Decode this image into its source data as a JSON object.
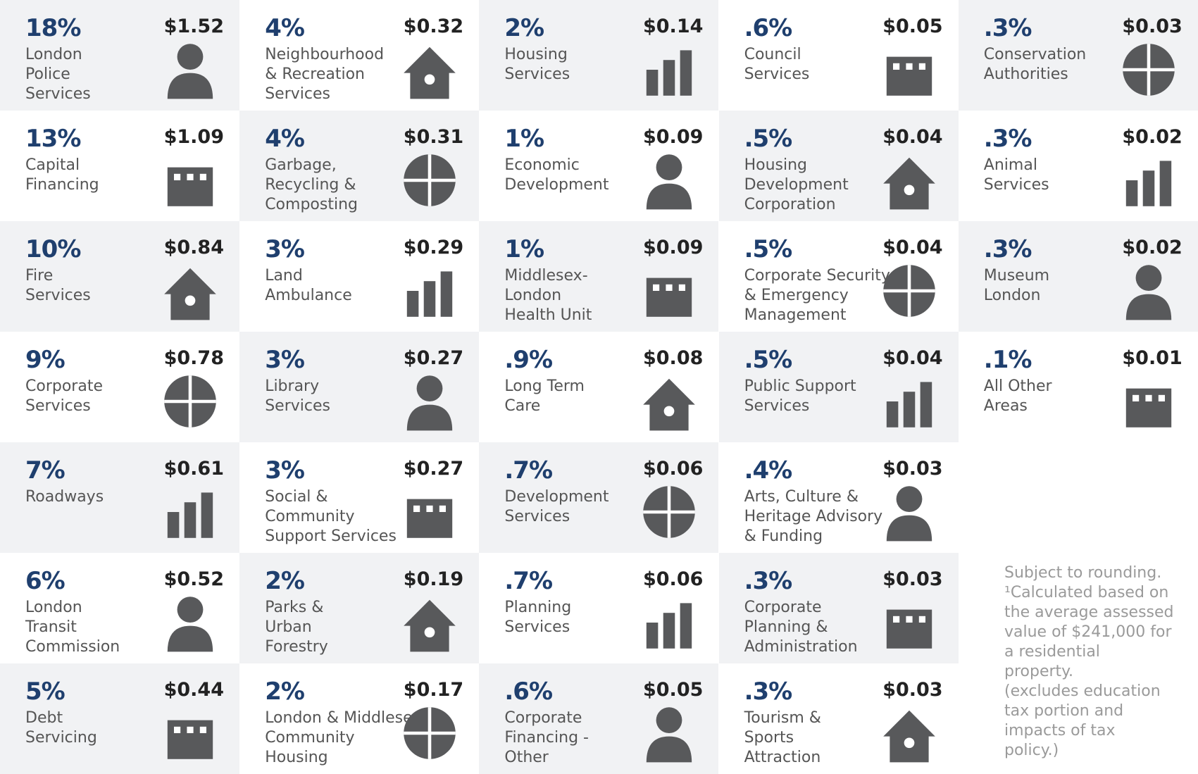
{
  "columns": [
    [
      {
        "percent": "18%",
        "amount": "$1.52",
        "name": [
          "London",
          "Police",
          "Services"
        ]
      },
      {
        "percent": "13%",
        "amount": "$1.09",
        "name": [
          "Capital",
          "Financing"
        ]
      },
      {
        "percent": "10%",
        "amount": "$0.84",
        "name": [
          "Fire",
          "Services"
        ]
      },
      {
        "percent": "9%",
        "amount": "$0.78",
        "name": [
          "Corporate",
          "Services"
        ]
      },
      {
        "percent": "7%",
        "amount": "$0.61",
        "name": [
          "Roadways"
        ]
      },
      {
        "percent": "6%",
        "amount": "$0.52",
        "name": [
          "London",
          "Transit",
          "Commission"
        ]
      },
      {
        "percent": "5%",
        "amount": "$0.44",
        "name": [
          "Debt",
          "Servicing"
        ]
      }
    ],
    [
      {
        "percent": "4%",
        "amount": "$0.32",
        "name": [
          "Neighbourhood",
          "& Recreation",
          "Services"
        ]
      },
      {
        "percent": "4%",
        "amount": "$0.31",
        "name": [
          "Garbage,",
          "Recycling &",
          "Composting"
        ]
      },
      {
        "percent": "3%",
        "amount": "$0.29",
        "name": [
          "Land",
          "Ambulance"
        ]
      },
      {
        "percent": "3%",
        "amount": "$0.27",
        "name": [
          "Library",
          "Services"
        ]
      },
      {
        "percent": "3%",
        "amount": "$0.27",
        "name": [
          "Social &",
          "Community",
          "Support Services"
        ]
      },
      {
        "percent": "2%",
        "amount": "$0.19",
        "name": [
          "Parks &",
          "Urban",
          "Forestry"
        ]
      },
      {
        "percent": "2%",
        "amount": "$0.17",
        "name": [
          "London & Middlesex",
          "Community",
          "Housing"
        ]
      }
    ],
    [
      {
        "percent": "2%",
        "amount": "$0.14",
        "name": [
          "Housing",
          "Services"
        ]
      },
      {
        "percent": "1%",
        "amount": "$0.09",
        "name": [
          "Economic",
          "Development"
        ]
      },
      {
        "percent": "1%",
        "amount": "$0.09",
        "name": [
          "Middlesex-",
          "London",
          "Health Unit"
        ]
      },
      {
        "percent": ".9%",
        "amount": "$0.08",
        "name": [
          "Long Term",
          "Care"
        ]
      },
      {
        "percent": ".7%",
        "amount": "$0.06",
        "name": [
          "Development",
          "Services"
        ]
      },
      {
        "percent": ".7%",
        "amount": "$0.06",
        "name": [
          "Planning",
          "Services"
        ]
      },
      {
        "percent": ".6%",
        "amount": "$0.05",
        "name": [
          "Corporate",
          "Financing -",
          "Other"
        ]
      }
    ],
    [
      {
        "percent": ".6%",
        "amount": "$0.05",
        "name": [
          "Council",
          "Services"
        ]
      },
      {
        "percent": ".5%",
        "amount": "$0.04",
        "name": [
          "Housing",
          "Development",
          "Corporation"
        ]
      },
      {
        "percent": ".5%",
        "amount": "$0.04",
        "name": [
          "Corporate Security",
          "& Emergency",
          "Management"
        ]
      },
      {
        "percent": ".5%",
        "amount": "$0.04",
        "name": [
          "Public Support",
          "Services"
        ]
      },
      {
        "percent": ".4%",
        "amount": "$0.03",
        "name": [
          "Arts, Culture &",
          "Heritage Advisory",
          "& Funding"
        ]
      },
      {
        "percent": ".3%",
        "amount": "$0.03",
        "name": [
          "Corporate",
          "Planning &",
          "Administration"
        ]
      },
      {
        "percent": ".3%",
        "amount": "$0.03",
        "name": [
          "Tourism &",
          "Sports",
          "Attraction"
        ]
      }
    ],
    [
      {
        "percent": ".3%",
        "amount": "$0.03",
        "name": [
          "Conservation",
          "Authorities"
        ]
      },
      {
        "percent": ".3%",
        "amount": "$0.02",
        "name": [
          "Animal",
          "Services"
        ]
      },
      {
        "percent": ".3%",
        "amount": "$0.02",
        "name": [
          "Museum",
          "London"
        ]
      },
      {
        "percent": ".1%",
        "amount": "$0.01",
        "name": [
          "All Other",
          "Areas"
        ]
      }
    ]
  ],
  "footnote": [
    "Subject to rounding.",
    "¹Calculated based on",
    "the average assessed",
    "value of $241,000 for",
    "a residential",
    "property.",
    "(excludes education",
    "tax portion and",
    "impacts of tax",
    "policy.)"
  ]
}
